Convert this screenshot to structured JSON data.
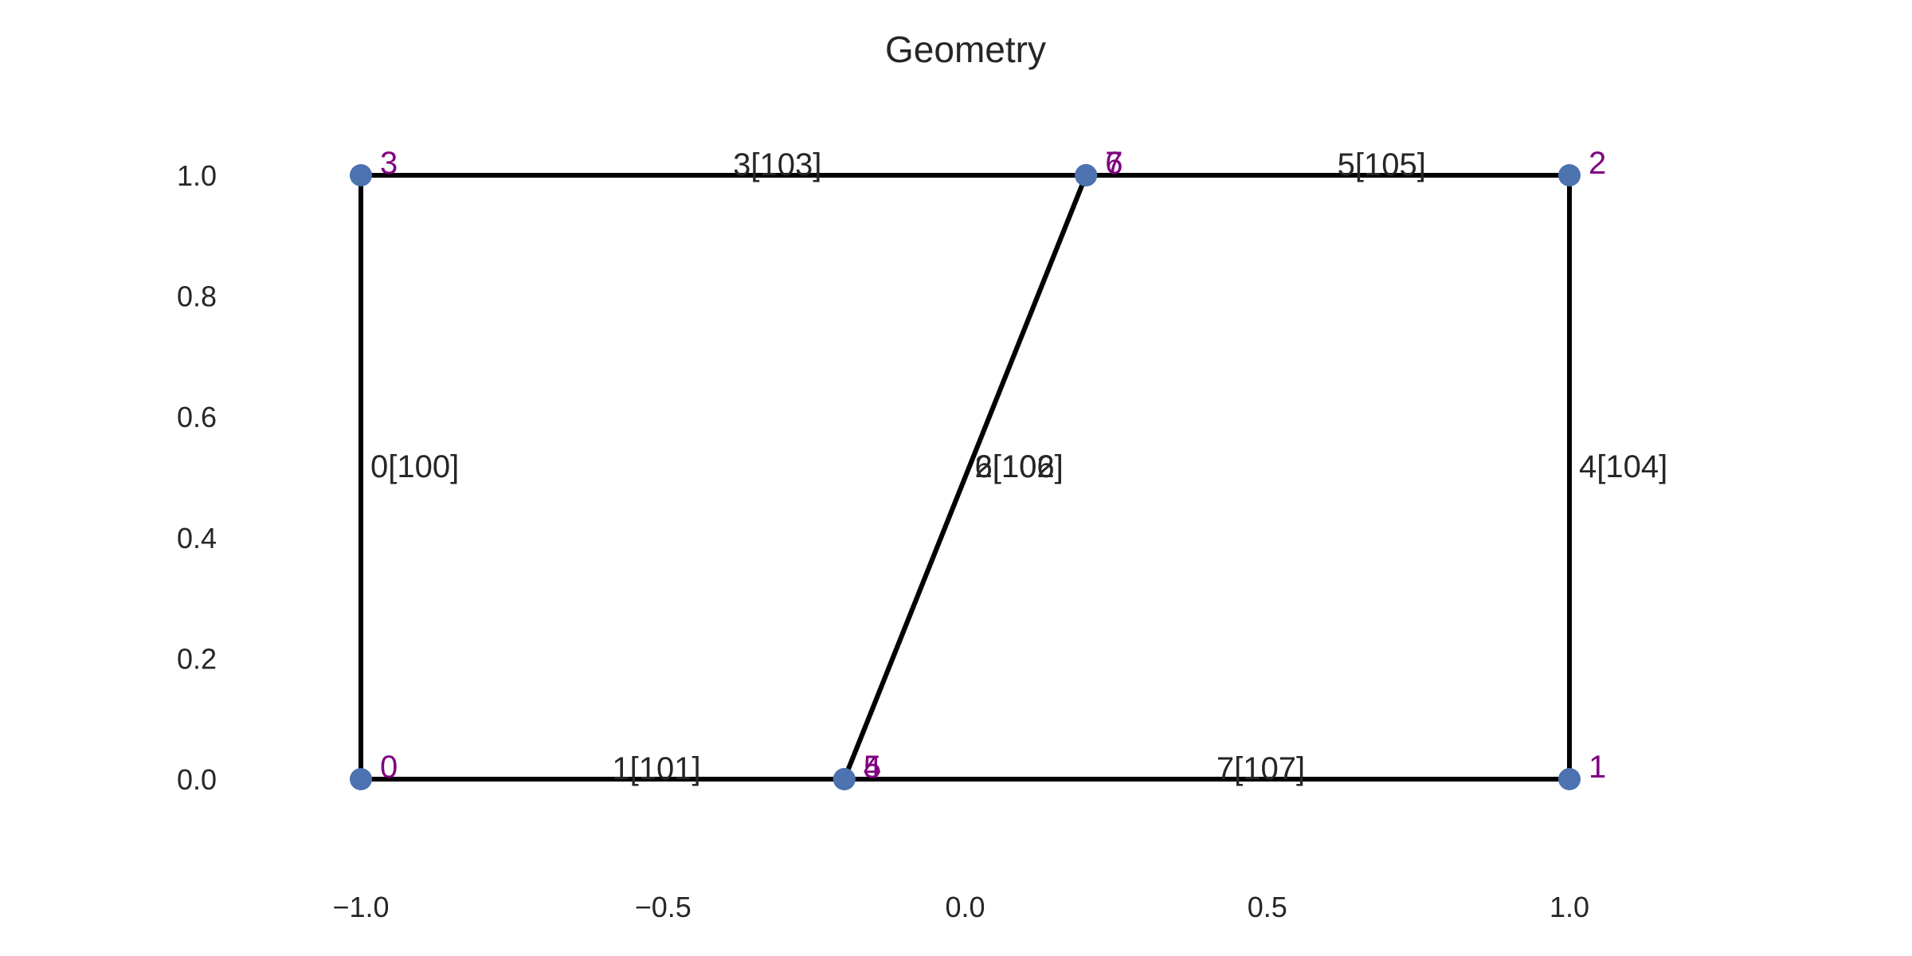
{
  "chart_data": {
    "type": "scatter",
    "title": "Geometry",
    "xlabel": "",
    "ylabel": "",
    "xlim": [
      -1.0,
      1.0
    ],
    "ylim": [
      0.0,
      1.0
    ],
    "grid": false,
    "xticks": [
      "−1.0",
      "−0.5",
      "0.0",
      "0.5",
      "1.0"
    ],
    "xtick_values": [
      -1.0,
      -0.5,
      0.0,
      0.5,
      1.0
    ],
    "yticks": [
      "0.0",
      "0.2",
      "0.4",
      "0.6",
      "0.8",
      "1.0"
    ],
    "ytick_values": [
      0.0,
      0.2,
      0.4,
      0.6,
      0.8,
      1.0
    ],
    "colors": {
      "node": "#4c72b0",
      "node_label": "#800080",
      "edge": "#000000",
      "text": "#262626"
    },
    "nodes": [
      {
        "id": "0",
        "x": -1.0,
        "y": 0.0
      },
      {
        "id": "1",
        "x": 1.0,
        "y": 0.0
      },
      {
        "id": "2",
        "x": 1.0,
        "y": 1.0
      },
      {
        "id": "3",
        "x": -1.0,
        "y": 1.0
      },
      {
        "id": "4",
        "x": -0.2,
        "y": 0.0
      },
      {
        "id": "5",
        "x": -0.2,
        "y": 0.0
      },
      {
        "id": "6",
        "x": 0.2,
        "y": 1.0
      },
      {
        "id": "7",
        "x": 0.2,
        "y": 1.0
      }
    ],
    "edges": [
      {
        "label": "0[100]",
        "from": "0",
        "to": "3"
      },
      {
        "label": "1[101]",
        "from": "0",
        "to": "4"
      },
      {
        "label": "2[102]",
        "from": "4",
        "to": "6"
      },
      {
        "label": "3[103]",
        "from": "3",
        "to": "6"
      },
      {
        "label": "4[104]",
        "from": "1",
        "to": "2"
      },
      {
        "label": "5[105]",
        "from": "7",
        "to": "2"
      },
      {
        "label": "6[106]",
        "from": "5",
        "to": "7"
      },
      {
        "label": "7[107]",
        "from": "5",
        "to": "1"
      }
    ]
  }
}
